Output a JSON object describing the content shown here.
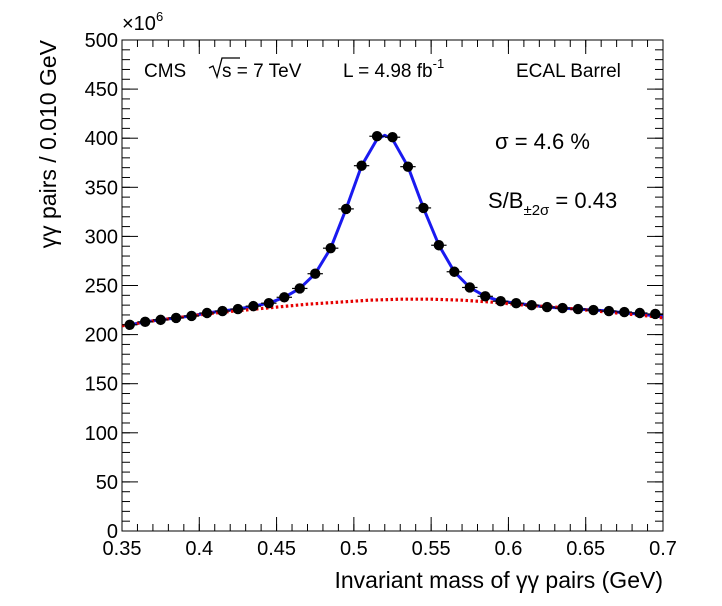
{
  "chart_data": {
    "type": "scatter",
    "xlabel": "Invariant mass of γγ pairs (GeV)",
    "ylabel": "γγ pairs / 0.010 GeV",
    "y_multiplier": "×10",
    "y_multiplier_exp": "6",
    "xlim": [
      0.35,
      0.7
    ],
    "ylim": [
      0,
      500
    ],
    "x_ticks": [
      "0.35",
      "0.4",
      "0.45",
      "0.5",
      "0.55",
      "0.6",
      "0.65",
      "0.7"
    ],
    "y_ticks": [
      "0",
      "50",
      "100",
      "150",
      "200",
      "250",
      "300",
      "350",
      "400",
      "450",
      "500"
    ],
    "grid": false,
    "annotations": {
      "experiment": "CMS",
      "sqrt_s": "s = 7 TeV",
      "lumi_text": "L = 4.98 fb",
      "lumi_exp": "-1",
      "region": "ECAL Barrel",
      "sigma": "σ = 4.6 %",
      "sb_label": "S/B",
      "sb_sub": "±2σ",
      "sb_value": " = 0.43"
    },
    "series": [
      {
        "kind": "data points",
        "color": "#000000",
        "x": [
          0.355,
          0.365,
          0.375,
          0.385,
          0.395,
          0.405,
          0.415,
          0.425,
          0.435,
          0.445,
          0.455,
          0.465,
          0.475,
          0.485,
          0.495,
          0.505,
          0.515,
          0.525,
          0.535,
          0.545,
          0.555,
          0.565,
          0.575,
          0.585,
          0.595,
          0.605,
          0.615,
          0.625,
          0.635,
          0.645,
          0.655,
          0.665,
          0.675,
          0.685,
          0.695
        ],
        "y": [
          210,
          213,
          215,
          217,
          219,
          222,
          224,
          226,
          229,
          232,
          238,
          247,
          262,
          288,
          328,
          372,
          402,
          401,
          371,
          329,
          291,
          264,
          248,
          239,
          234,
          232,
          230,
          228,
          227,
          226,
          225,
          224,
          223,
          222,
          221
        ]
      },
      {
        "kind": "signal+background fit",
        "color": "#1a1af0",
        "x": [
          0.355,
          0.365,
          0.375,
          0.385,
          0.395,
          0.405,
          0.415,
          0.425,
          0.435,
          0.445,
          0.455,
          0.465,
          0.475,
          0.485,
          0.495,
          0.505,
          0.515,
          0.52,
          0.525,
          0.535,
          0.545,
          0.555,
          0.565,
          0.575,
          0.585,
          0.595,
          0.605,
          0.615,
          0.625,
          0.635,
          0.645,
          0.655,
          0.665,
          0.675,
          0.685,
          0.695,
          0.7
        ],
        "y": [
          210,
          213,
          215,
          217,
          219,
          222,
          224,
          226,
          229,
          232,
          238,
          247,
          262,
          288,
          328,
          372,
          399,
          403,
          399,
          371,
          329,
          291,
          264,
          248,
          239,
          234,
          232,
          230,
          228,
          227,
          226,
          225,
          224,
          222,
          221,
          219,
          218
        ]
      },
      {
        "kind": "background fit",
        "color": "#e60000",
        "x": [
          0.35,
          0.37,
          0.39,
          0.41,
          0.43,
          0.45,
          0.47,
          0.49,
          0.51,
          0.53,
          0.55,
          0.57,
          0.59,
          0.61,
          0.63,
          0.65,
          0.67,
          0.69,
          0.7
        ],
        "y": [
          209,
          214,
          218,
          222,
          225,
          228,
          231,
          233,
          235,
          236,
          236,
          235,
          233,
          230,
          228,
          225,
          222,
          219,
          217
        ]
      }
    ]
  }
}
